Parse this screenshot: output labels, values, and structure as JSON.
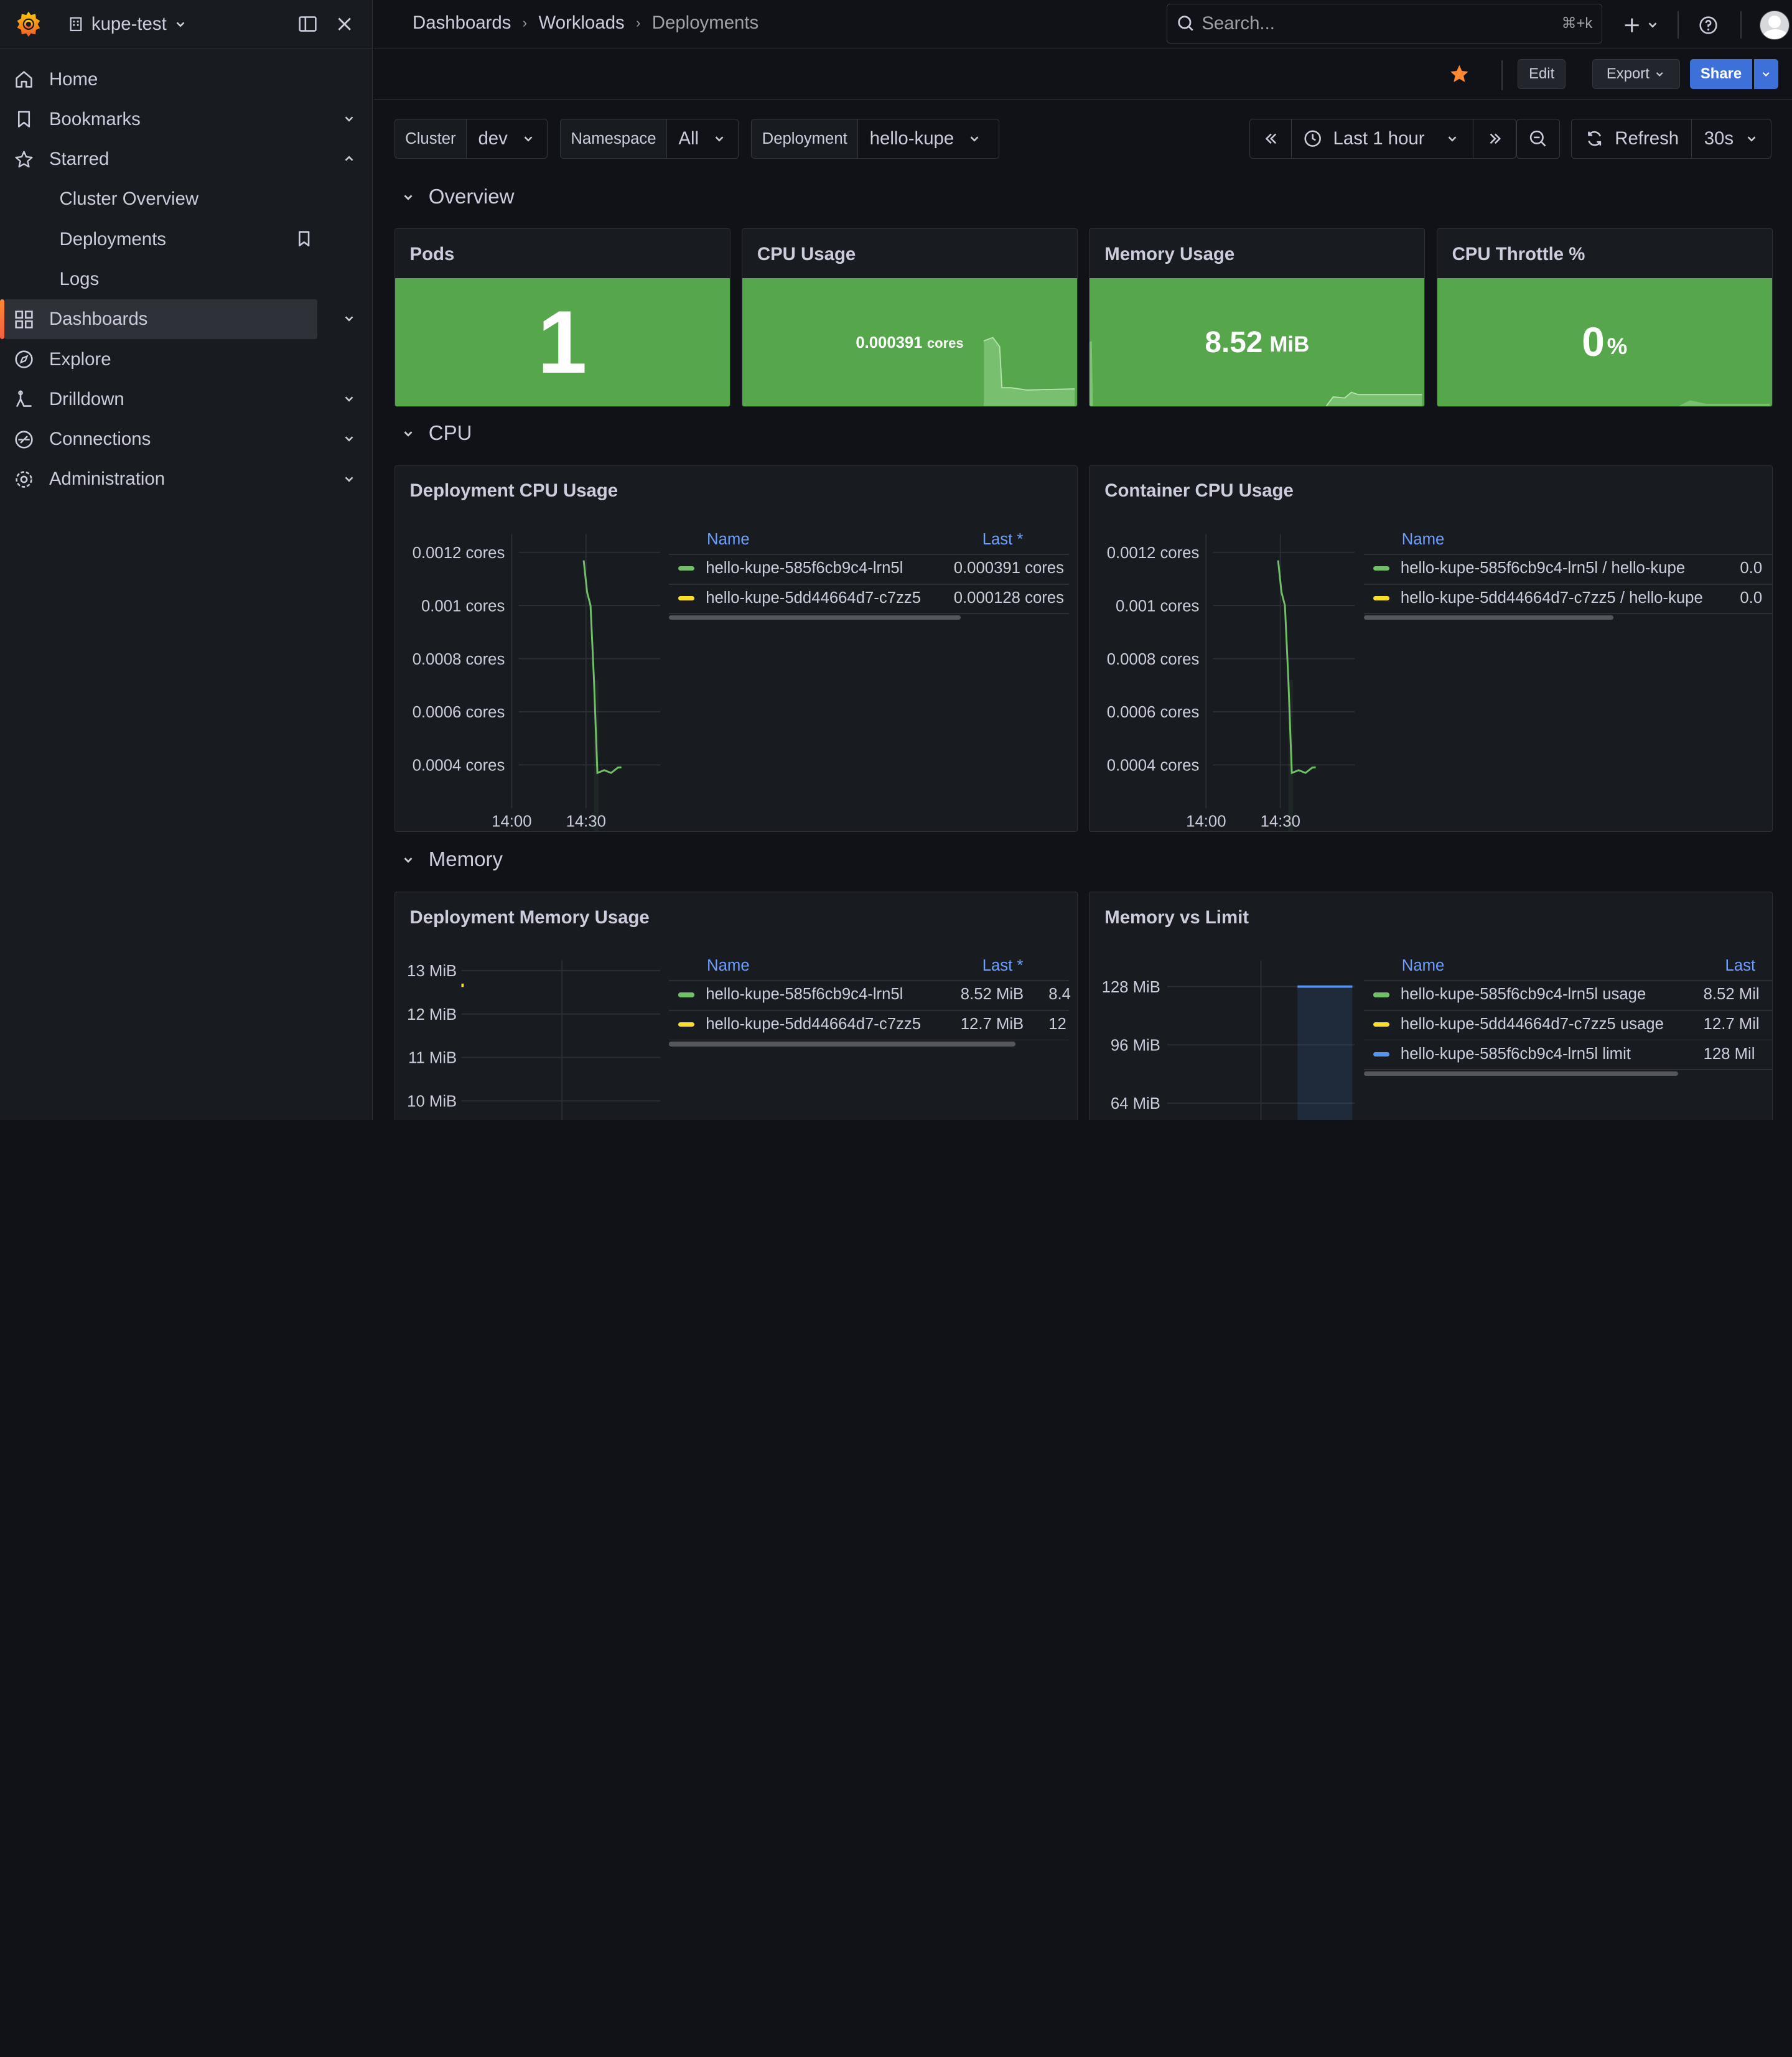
{
  "sidebar": {
    "org_name": "kupe-test",
    "items": [
      {
        "label": "Home",
        "icon": "home-icon"
      },
      {
        "label": "Bookmarks",
        "icon": "bookmark-icon"
      },
      {
        "label": "Starred",
        "icon": "star-icon"
      },
      {
        "label": "Dashboards",
        "icon": "apps-icon"
      },
      {
        "label": "Explore",
        "icon": "compass-icon"
      },
      {
        "label": "Drilldown",
        "icon": "drilldown-icon"
      },
      {
        "label": "Connections",
        "icon": "connections-icon"
      },
      {
        "label": "Administration",
        "icon": "cog-icon"
      }
    ],
    "starred": [
      "Cluster Overview",
      "Deployments",
      "Logs"
    ]
  },
  "breadcrumbs": [
    "Dashboards",
    "Workloads",
    "Deployments"
  ],
  "search": {
    "placeholder": "Search...",
    "shortcut": "⌘+k"
  },
  "toolbar": {
    "edit": "Edit",
    "export": "Export",
    "share": "Share"
  },
  "variables": [
    {
      "label": "Cluster",
      "value": "dev"
    },
    {
      "label": "Namespace",
      "value": "All"
    },
    {
      "label": "Deployment",
      "value": "hello-kupe"
    }
  ],
  "time": {
    "range": "Last 1 hour",
    "refresh": "Refresh",
    "interval": "30s"
  },
  "rows": {
    "overview": "Overview",
    "cpu": "CPU",
    "memory": "Memory"
  },
  "stats": [
    {
      "title": "Pods",
      "value": "1",
      "unit": ""
    },
    {
      "title": "CPU Usage",
      "value": "0.000391",
      "unit": "cores"
    },
    {
      "title": "Memory Usage",
      "value": "8.52",
      "unit": "MiB"
    },
    {
      "title": "CPU Throttle %",
      "value": "0",
      "unit": "%"
    }
  ],
  "panels": {
    "deployment_cpu": {
      "title": "Deployment CPU Usage",
      "col_name": "Name",
      "col_last": "Last *",
      "legend": [
        {
          "name": "hello-kupe-585f6cb9c4-lrn5l",
          "last": "0.000391 cores",
          "color": "#73bf69"
        },
        {
          "name": "hello-kupe-5dd44664d7-c7zz5",
          "last": "0.000128 cores",
          "color": "#fade2a"
        }
      ]
    },
    "container_cpu": {
      "title": "Container CPU Usage",
      "col_name": "Name",
      "legend": [
        {
          "name": "hello-kupe-585f6cb9c4-lrn5l / hello-kupe",
          "last": "0.0",
          "color": "#73bf69"
        },
        {
          "name": "hello-kupe-5dd44664d7-c7zz5 / hello-kupe",
          "last": "0.0",
          "color": "#fade2a"
        }
      ]
    },
    "deployment_memory": {
      "title": "Deployment Memory Usage",
      "col_name": "Name",
      "col_last": "Last *",
      "legend": [
        {
          "name": "hello-kupe-585f6cb9c4-lrn5l",
          "last": "8.52 MiB",
          "extra": "8.4",
          "color": "#73bf69"
        },
        {
          "name": "hello-kupe-5dd44664d7-c7zz5",
          "last": "12.7 MiB",
          "extra": "12",
          "color": "#fade2a"
        }
      ]
    },
    "memory_vs_limit": {
      "title": "Memory vs Limit",
      "col_name": "Name",
      "col_last": "Last",
      "legend": [
        {
          "name": "hello-kupe-585f6cb9c4-lrn5l usage",
          "last": "8.52 Mil",
          "color": "#73bf69"
        },
        {
          "name": "hello-kupe-5dd44664d7-c7zz5 usage",
          "last": "12.7 Mil",
          "color": "#fade2a"
        },
        {
          "name": "hello-kupe-585f6cb9c4-lrn5l limit",
          "last": "128 Mil",
          "color": "#5794f2"
        }
      ]
    }
  },
  "chart_data": [
    {
      "type": "line",
      "title": "Deployment CPU Usage",
      "yticks": [
        "0.0012 cores",
        "0.001 cores",
        "0.0008 cores",
        "0.0006 cores",
        "0.0004 cores"
      ],
      "xticks": [
        "14:00",
        "14:30"
      ],
      "ylim": [
        0.0003,
        0.00125
      ],
      "xlim": [
        0,
        60
      ],
      "series": [
        {
          "name": "hello-kupe-585f6cb9c4-lrn5l",
          "x": [
            41,
            41.5,
            42,
            42.5,
            43,
            44,
            45,
            46,
            46.5
          ],
          "y": [
            0.00117,
            0.00105,
            0.001,
            0.00072,
            0.00037,
            0.00038,
            0.00037,
            0.00039,
            0.000391
          ]
        }
      ]
    },
    {
      "type": "line",
      "title": "Container CPU Usage",
      "yticks": [
        "0.0012 cores",
        "0.001 cores",
        "0.0008 cores",
        "0.0006 cores",
        "0.0004 cores"
      ],
      "xticks": [
        "14:00",
        "14:30"
      ],
      "ylim": [
        0.0003,
        0.00125
      ],
      "xlim": [
        0,
        60
      ],
      "series": [
        {
          "name": "hello-kupe-585f6cb9c4-lrn5l / hello-kupe",
          "x": [
            41,
            41.5,
            42,
            42.5,
            43,
            44,
            45,
            46,
            46.5
          ],
          "y": [
            0.00117,
            0.00105,
            0.001,
            0.00072,
            0.00037,
            0.00038,
            0.00037,
            0.00039,
            0.000391
          ]
        }
      ]
    },
    {
      "type": "line",
      "title": "Deployment Memory Usage",
      "yticks": [
        "13 MiB",
        "12 MiB",
        "11 MiB",
        "10 MiB"
      ],
      "ylim": [
        9.5,
        13.3
      ]
    },
    {
      "type": "area",
      "title": "Memory vs Limit",
      "yticks": [
        "128 MiB",
        "96 MiB",
        "64 MiB"
      ],
      "ylim": [
        55,
        140
      ]
    }
  ]
}
